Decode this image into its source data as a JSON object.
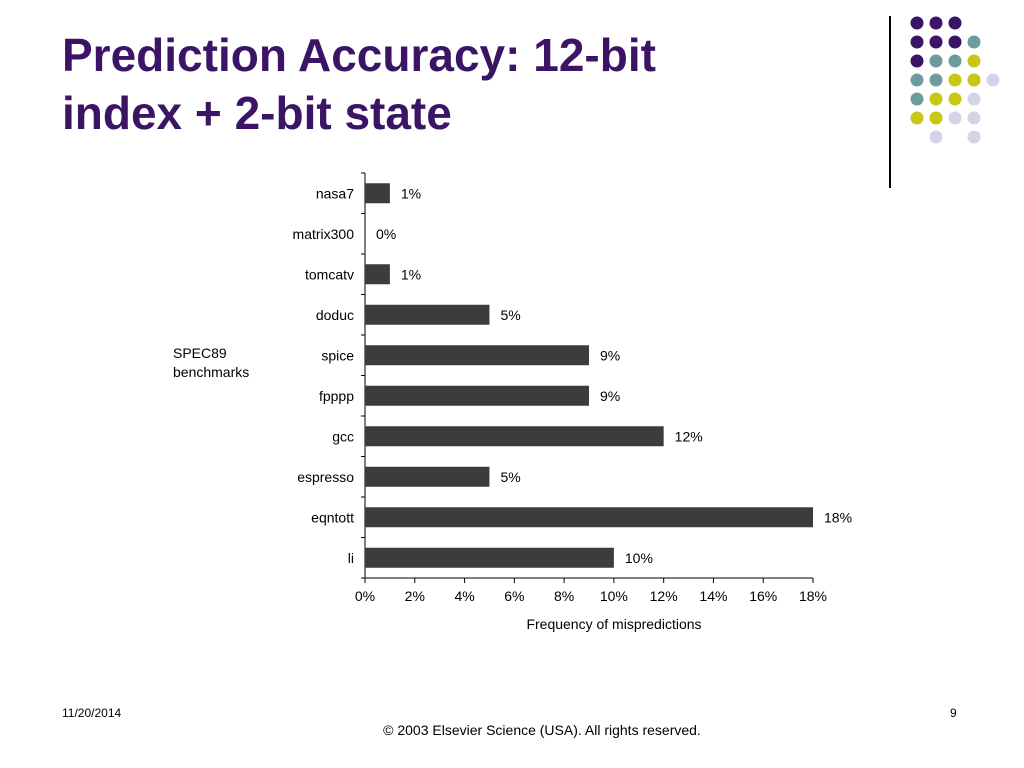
{
  "slide": {
    "title_lines": [
      "Prediction Accuracy: 12-bit",
      "index + 2-bit state"
    ],
    "group_label_lines": [
      "SPEC89",
      "benchmarks"
    ],
    "footer_date": "11/20/2014",
    "page_number": "9",
    "copyright": "© 2003 Elsevier Science (USA). All rights reserved."
  },
  "decor": {
    "palette": [
      "#3b1466",
      "#6e9c9c",
      "#c8c814",
      "#d4d4e6"
    ],
    "dot_grid": [
      [
        0,
        0,
        0,
        null,
        null
      ],
      [
        0,
        0,
        0,
        1,
        null
      ],
      [
        0,
        1,
        1,
        2,
        null
      ],
      [
        1,
        1,
        2,
        2,
        3
      ],
      [
        1,
        2,
        2,
        3,
        null
      ],
      [
        2,
        2,
        3,
        3,
        null
      ],
      [
        null,
        3,
        null,
        3,
        null
      ]
    ]
  },
  "chart_data": {
    "type": "bar",
    "orientation": "horizontal",
    "categories": [
      "nasa7",
      "matrix300",
      "tomcatv",
      "doduc",
      "spice",
      "fpppp",
      "gcc",
      "espresso",
      "eqntott",
      "li"
    ],
    "values": [
      1,
      0,
      1,
      5,
      9,
      9,
      12,
      5,
      18,
      10
    ],
    "value_labels": [
      "1%",
      "0%",
      "1%",
      "5%",
      "9%",
      "9%",
      "12%",
      "5%",
      "18%",
      "10%"
    ],
    "xlabel": "Frequency of mispredictions",
    "ylabel": "",
    "xlim": [
      0,
      18
    ],
    "x_ticks": [
      0,
      2,
      4,
      6,
      8,
      10,
      12,
      14,
      16,
      18
    ],
    "x_tick_labels": [
      "0%",
      "2%",
      "4%",
      "6%",
      "8%",
      "10%",
      "12%",
      "14%",
      "16%",
      "18%"
    ],
    "bar_color": "#3c3c3c",
    "grid": false,
    "legend": "none"
  }
}
